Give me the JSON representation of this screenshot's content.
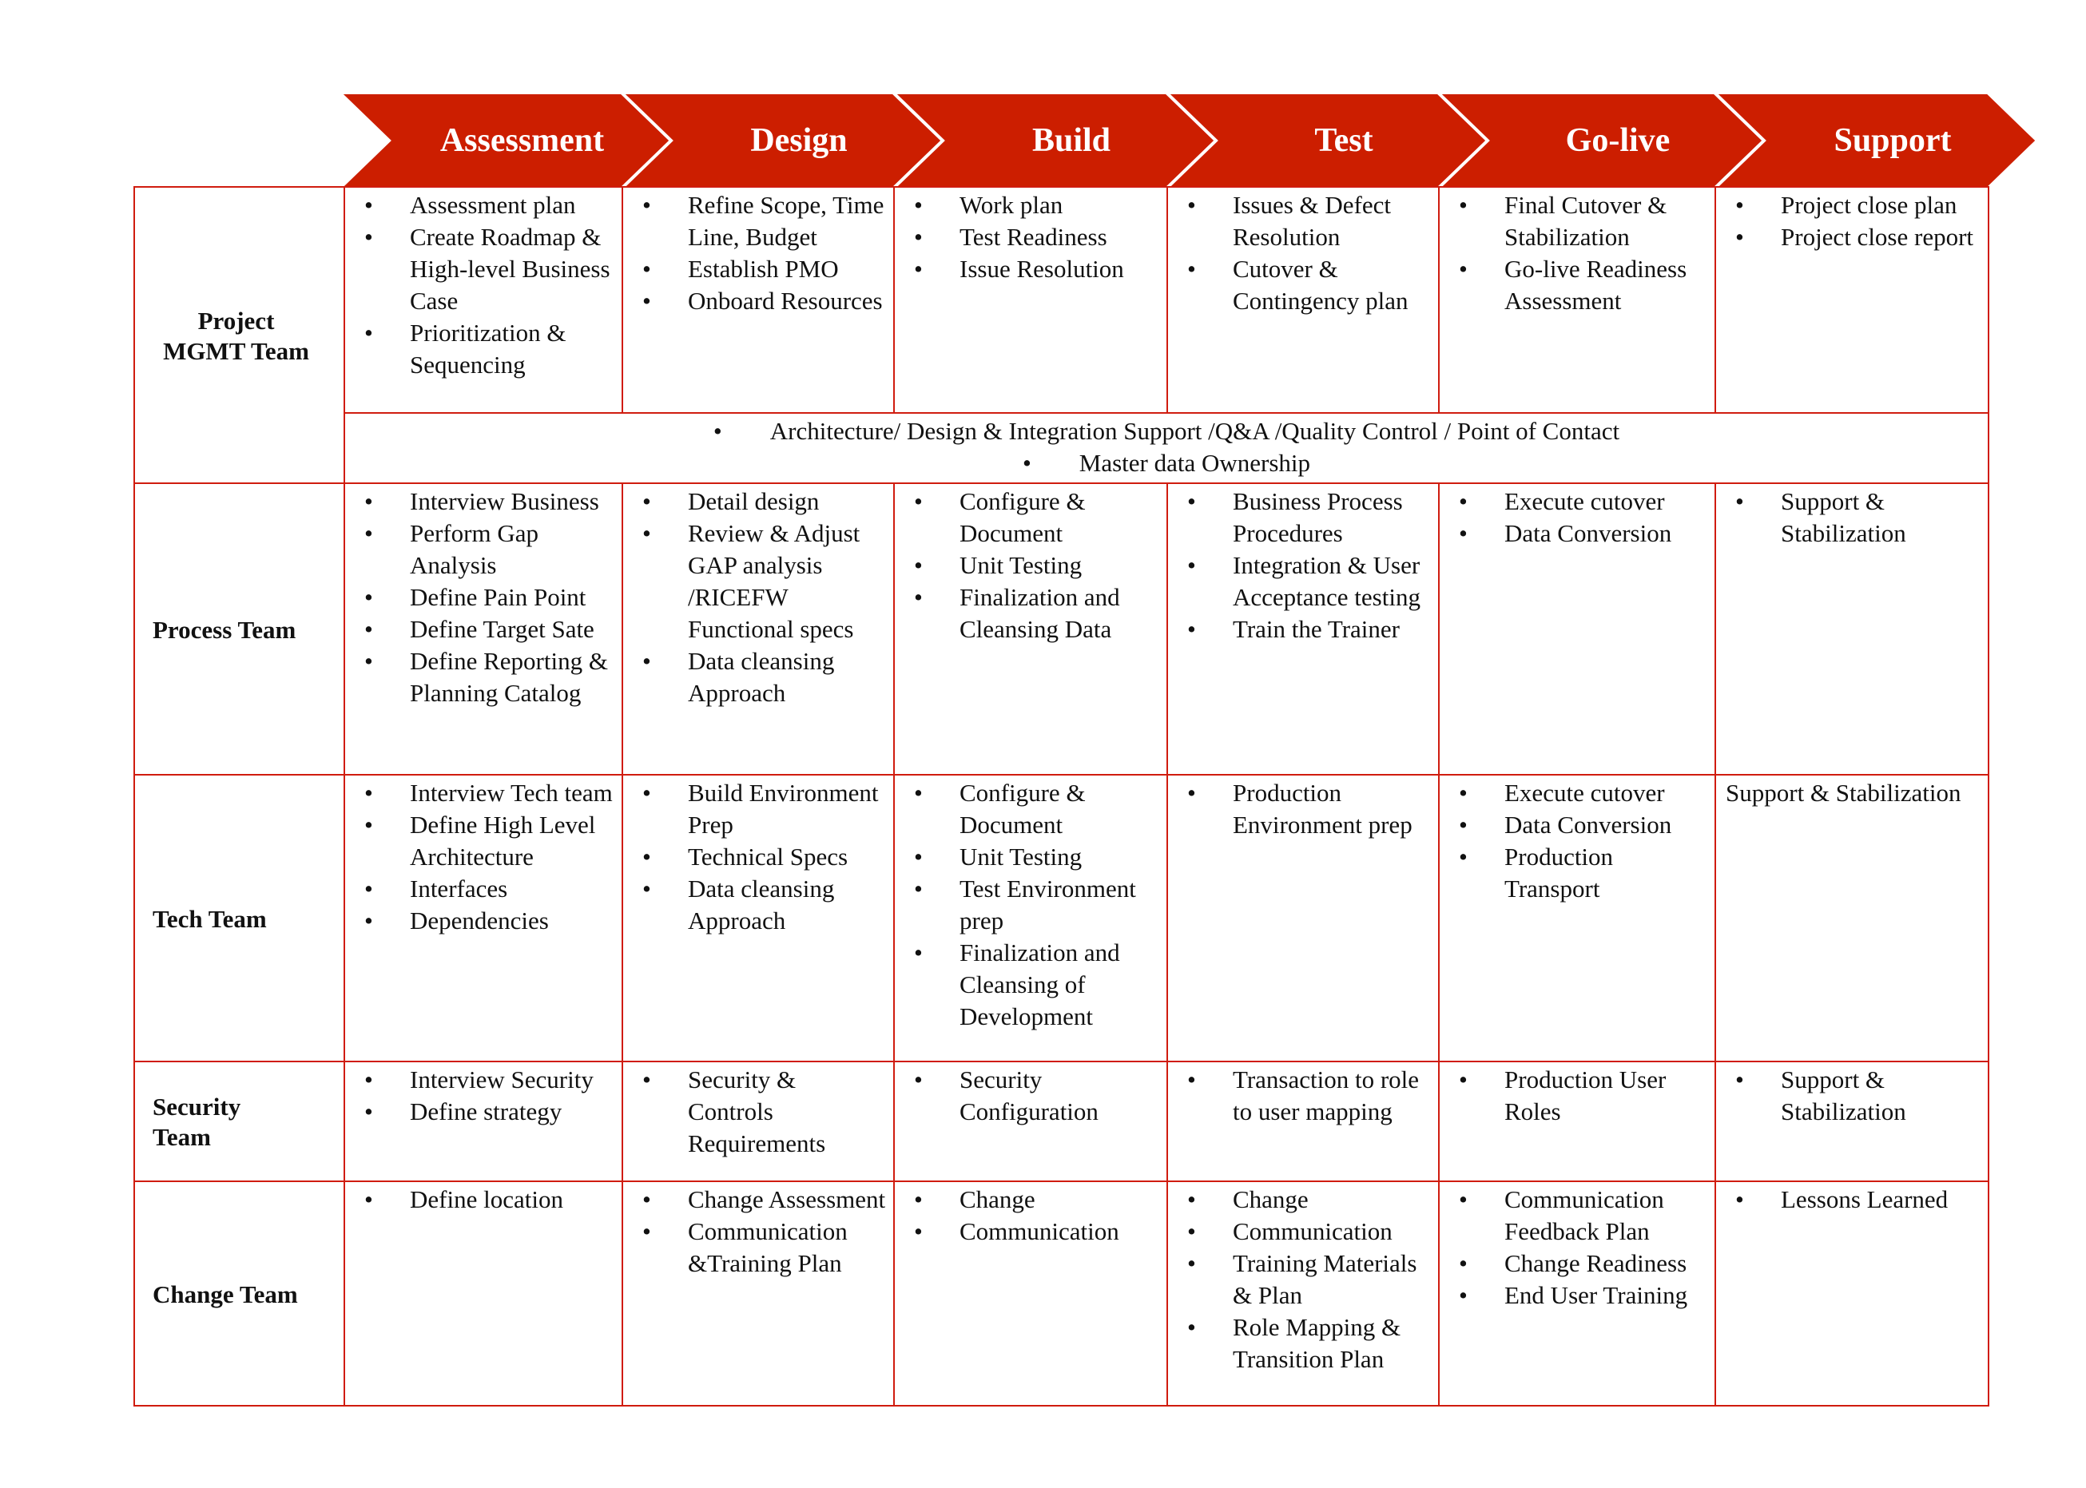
{
  "colors": {
    "accent": "#cc1e00",
    "border": "#d01c0f"
  },
  "phases": [
    "Assessment",
    "Design",
    "Build",
    "Test",
    "Go-live",
    "Support"
  ],
  "rows": [
    {
      "label": "Project MGMT Team",
      "cells": [
        [
          "Assessment plan",
          "Create Roadmap & High-level Business Case",
          "Prioritization & Sequencing"
        ],
        [
          "Refine Scope, Time Line, Budget",
          "Establish PMO",
          "Onboard Resources"
        ],
        [
          "Work plan",
          "Test Readiness",
          "Issue Resolution"
        ],
        [
          "Issues & Defect Resolution",
          "Cutover & Contingency plan"
        ],
        [
          "Final Cutover & Stabilization",
          "Go-live Readiness Assessment"
        ],
        [
          "Project close plan",
          "Project close report"
        ]
      ],
      "shared": [
        "Architecture/ Design & Integration Support /Q&A /Quality Control / Point of Contact",
        "Master data Ownership"
      ]
    },
    {
      "label": "Process Team",
      "cells": [
        [
          "Interview Business",
          "Perform Gap Analysis",
          "Define Pain Point",
          "Define Target Sate",
          "Define Reporting & Planning Catalog"
        ],
        [
          "Detail design",
          "Review & Adjust GAP analysis /RICEFW Functional specs",
          "Data cleansing Approach"
        ],
        [
          "Configure & Document",
          "Unit Testing",
          "Finalization and Cleansing Data"
        ],
        [
          "Business Process Procedures",
          "Integration & User Acceptance testing",
          "Train the Trainer"
        ],
        [
          "Execute cutover",
          "Data Conversion"
        ],
        [
          "Support & Stabilization"
        ]
      ]
    },
    {
      "label": "Tech Team",
      "cells": [
        [
          "Interview Tech team",
          "Define High Level Architecture",
          "Interfaces",
          "Dependencies"
        ],
        [
          "Build Environment Prep",
          "Technical Specs",
          "Data cleansing Approach"
        ],
        [
          "Configure & Document",
          "Unit Testing",
          "Test Environment prep",
          "Finalization and Cleansing of Development"
        ],
        [
          "Production Environment prep"
        ],
        [
          "Execute cutover",
          "Data Conversion",
          "Production Transport"
        ],
        [
          "Support & Stabilization"
        ]
      ],
      "plain_last": true
    },
    {
      "label": "Security Team",
      "cells": [
        [
          "Interview Security",
          "Define strategy"
        ],
        [
          "Security & Controls Requirements"
        ],
        [
          "Security Configuration"
        ],
        [
          "Transaction to role to user mapping"
        ],
        [
          "Production User Roles"
        ],
        [
          "Support & Stabilization"
        ]
      ]
    },
    {
      "label": "Change Team",
      "cells": [
        [
          "Define location"
        ],
        [
          "Change Assessment",
          "Communication &Training Plan"
        ],
        [
          "Change",
          "Communication"
        ],
        [
          "Change",
          "Communication",
          "Training Materials & Plan",
          "Role Mapping & Transition Plan"
        ],
        [
          "Communication Feedback Plan",
          "Change Readiness",
          "End User Training"
        ],
        [
          "Lessons Learned"
        ]
      ]
    }
  ]
}
